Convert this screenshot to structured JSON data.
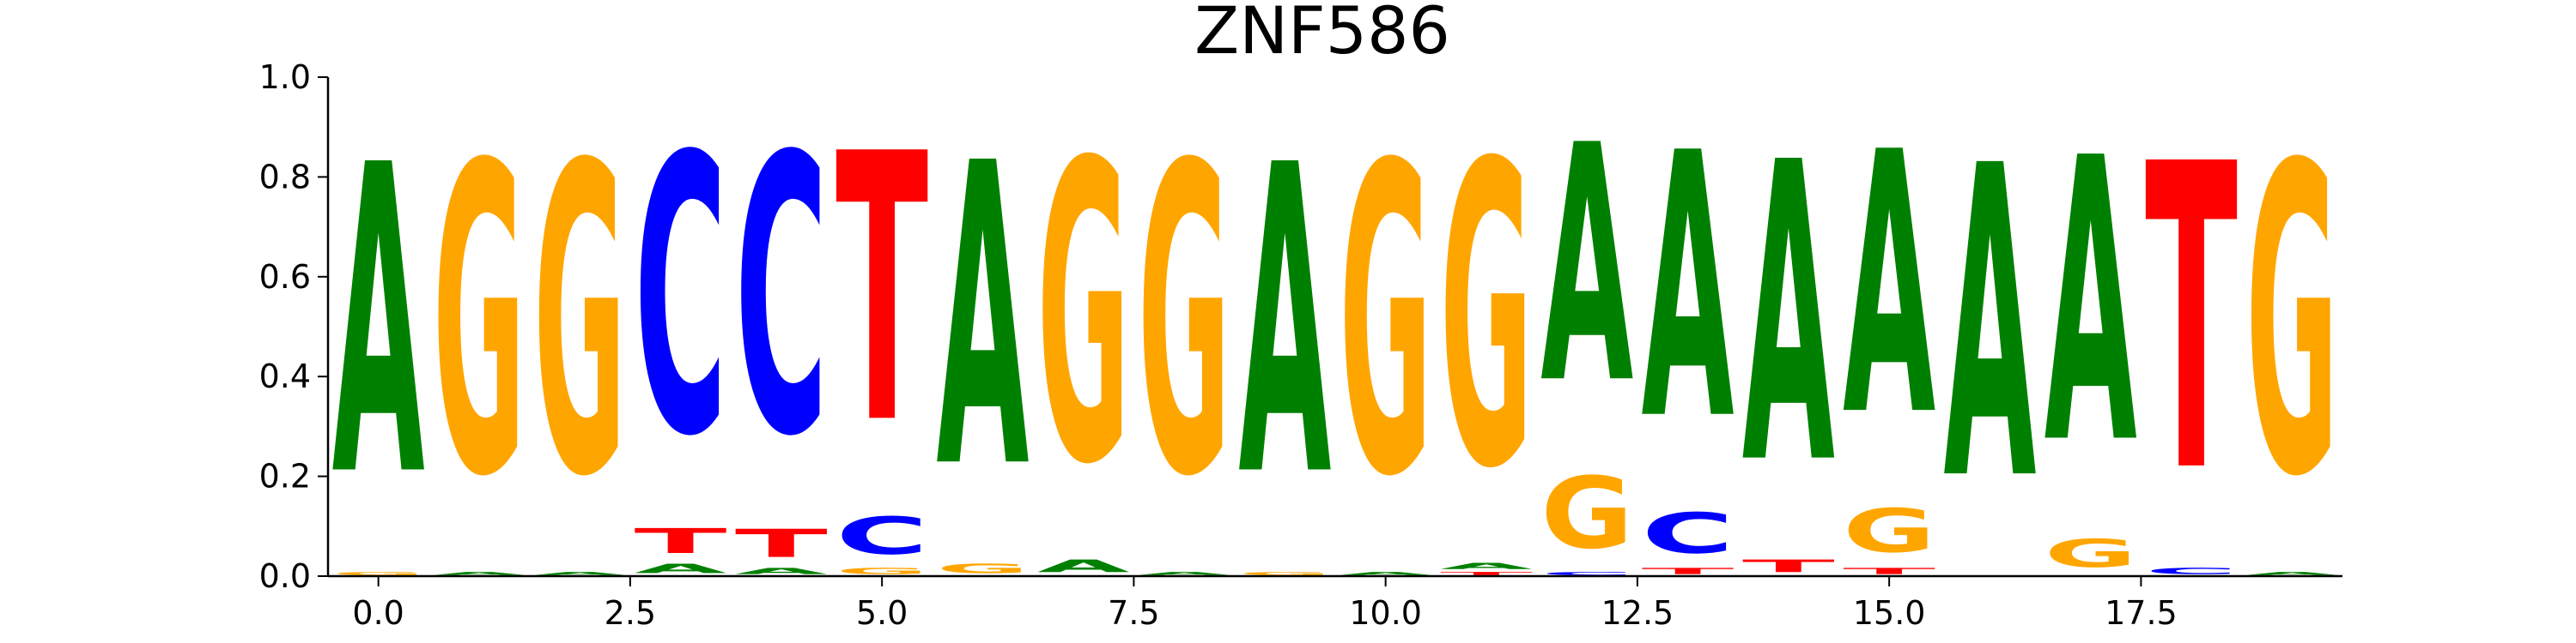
{
  "chart_data": {
    "type": "sequence-logo",
    "title": "ZNF586",
    "xlim": [
      -0.5,
      19.5
    ],
    "ylim": [
      0,
      1.0
    ],
    "x_ticks": [
      0.0,
      2.5,
      5.0,
      7.5,
      10.0,
      12.5,
      15.0,
      17.5
    ],
    "x_tick_labels": [
      "0.0",
      "2.5",
      "5.0",
      "7.5",
      "10.0",
      "12.5",
      "15.0",
      "17.5"
    ],
    "y_ticks": [
      0.0,
      0.2,
      0.4,
      0.6,
      0.8,
      1.0
    ],
    "y_tick_labels": [
      "0.0",
      "0.2",
      "0.4",
      "0.6",
      "0.8",
      "1.0"
    ],
    "colors": {
      "A": "#008000",
      "C": "#0000ff",
      "G": "#ffa500",
      "T": "#ff0000"
    },
    "positions": [
      {
        "x": 0,
        "letters": [
          {
            "base": "G",
            "value": 0.01
          },
          {
            "base": "A",
            "value": 0.99
          }
        ]
      },
      {
        "x": 1,
        "letters": [
          {
            "base": "A",
            "value": 0.01
          },
          {
            "base": "G",
            "value": 0.99
          }
        ]
      },
      {
        "x": 2,
        "letters": [
          {
            "base": "A",
            "value": 0.01
          },
          {
            "base": "G",
            "value": 0.99
          }
        ]
      },
      {
        "x": 3,
        "letters": [
          {
            "base": "A",
            "value": 0.03
          },
          {
            "base": "T",
            "value": 0.08
          },
          {
            "base": "C",
            "value": 0.89
          }
        ]
      },
      {
        "x": 4,
        "letters": [
          {
            "base": "A",
            "value": 0.02
          },
          {
            "base": "T",
            "value": 0.09
          },
          {
            "base": "C",
            "value": 0.89
          }
        ]
      },
      {
        "x": 5,
        "letters": [
          {
            "base": "G",
            "value": 0.02
          },
          {
            "base": "C",
            "value": 0.12
          },
          {
            "base": "T",
            "value": 0.86
          }
        ]
      },
      {
        "x": 6,
        "letters": [
          {
            "base": "G",
            "value": 0.03
          },
          {
            "base": "A",
            "value": 0.97
          }
        ]
      },
      {
        "x": 7,
        "letters": [
          {
            "base": "A",
            "value": 0.04
          },
          {
            "base": "G",
            "value": 0.96
          }
        ]
      },
      {
        "x": 8,
        "letters": [
          {
            "base": "A",
            "value": 0.01
          },
          {
            "base": "G",
            "value": 0.99
          }
        ]
      },
      {
        "x": 9,
        "letters": [
          {
            "base": "G",
            "value": 0.01
          },
          {
            "base": "A",
            "value": 0.99
          }
        ]
      },
      {
        "x": 10,
        "letters": [
          {
            "base": "A",
            "value": 0.01
          },
          {
            "base": "G",
            "value": 0.99
          }
        ]
      },
      {
        "x": 11,
        "letters": [
          {
            "base": "T",
            "value": 0.01
          },
          {
            "base": "A",
            "value": 0.02
          },
          {
            "base": "G",
            "value": 0.97
          }
        ]
      },
      {
        "x": 12,
        "letters": [
          {
            "base": "C",
            "value": 0.01
          },
          {
            "base": "G",
            "value": 0.23
          },
          {
            "base": "A",
            "value": 0.76
          }
        ]
      },
      {
        "x": 13,
        "letters": [
          {
            "base": "T",
            "value": 0.02
          },
          {
            "base": "C",
            "value": 0.13
          },
          {
            "base": "A",
            "value": 0.85
          }
        ]
      },
      {
        "x": 14,
        "letters": [
          {
            "base": "T",
            "value": 0.04
          },
          {
            "base": "A",
            "value": 0.96
          }
        ]
      },
      {
        "x": 15,
        "letters": [
          {
            "base": "T",
            "value": 0.02
          },
          {
            "base": "G",
            "value": 0.14
          },
          {
            "base": "A",
            "value": 0.84
          }
        ]
      },
      {
        "x": 16,
        "letters": [
          {
            "base": "A",
            "value": 1.0
          }
        ]
      },
      {
        "x": 17,
        "letters": [
          {
            "base": "G",
            "value": 0.09
          },
          {
            "base": "A",
            "value": 0.91
          }
        ]
      },
      {
        "x": 18,
        "letters": [
          {
            "base": "C",
            "value": 0.02
          },
          {
            "base": "T",
            "value": 0.98
          }
        ]
      },
      {
        "x": 19,
        "letters": [
          {
            "base": "A",
            "value": 0.01
          },
          {
            "base": "G",
            "value": 0.99
          }
        ]
      }
    ]
  }
}
